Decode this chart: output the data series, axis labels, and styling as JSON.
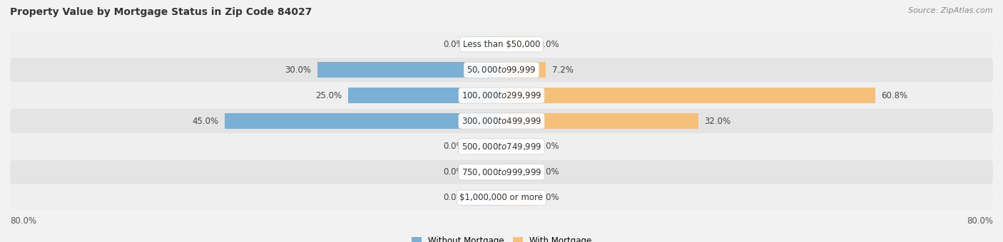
{
  "title": "Property Value by Mortgage Status in Zip Code 84027",
  "source": "Source: ZipAtlas.com",
  "categories": [
    "Less than $50,000",
    "$50,000 to $99,999",
    "$100,000 to $299,999",
    "$300,000 to $499,999",
    "$500,000 to $749,999",
    "$750,000 to $999,999",
    "$1,000,000 or more"
  ],
  "without_mortgage": [
    0.0,
    30.0,
    25.0,
    45.0,
    0.0,
    0.0,
    0.0
  ],
  "with_mortgage": [
    0.0,
    7.2,
    60.8,
    32.0,
    0.0,
    0.0,
    0.0
  ],
  "color_without": "#7bafd4",
  "color_with": "#f5c07a",
  "color_without_faint": "#c5dff0",
  "color_with_faint": "#fce0b8",
  "xlim": [
    -80,
    80
  ],
  "zero_stub": 5.0,
  "bar_height": 0.62,
  "row_colors": [
    "#efefef",
    "#e4e4e4"
  ],
  "title_fontsize": 10,
  "source_fontsize": 8,
  "label_fontsize": 8.5,
  "category_fontsize": 8.5,
  "left_label": "80.0%",
  "right_label": "80.0%"
}
